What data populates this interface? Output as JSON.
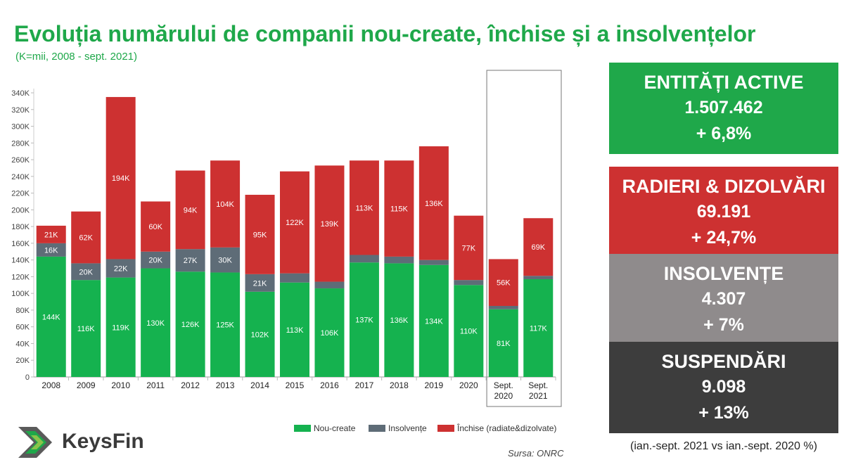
{
  "title": "Evoluția numărului de companii nou-create, închise și a insolvențelor",
  "subtitle": "(K=mii, 2008 - sept. 2021)",
  "colors": {
    "accent_green": "#1fa84a",
    "bar_green": "#15b24f",
    "bar_gray": "#5e6c77",
    "bar_red": "#cd3131",
    "stat_gray": "#8f8b8c",
    "stat_dark": "#3d3d3d",
    "stat_red": "#cd3131"
  },
  "stats": [
    {
      "label": "ENTITĂȚI ACTIVE",
      "value": "1.507.462",
      "change": "+ 6,8%",
      "color": "#1fa84a"
    },
    {
      "label": "RADIERI & DIZOLVĂRI",
      "value": "69.191",
      "change": "+ 24,7%",
      "color": "#cd3131"
    },
    {
      "label": "INSOLVENȚE",
      "value": "4.307",
      "change": "+ 7%",
      "color": "#8f8b8c"
    },
    {
      "label": "SUSPENDĂRI",
      "value": "9.098",
      "change": "+ 13%",
      "color": "#3d3d3d"
    }
  ],
  "note": "(ian.-sept. 2021 vs ian.-sept. 2020 %)",
  "source": "Sursa: ONRC",
  "logo": {
    "text": "KeysFin",
    "icon": "keysfin-chevron-logo"
  },
  "chart_data": {
    "type": "bar",
    "stacked": true,
    "categories": [
      "2008",
      "2009",
      "2010",
      "2011",
      "2012",
      "2013",
      "2014",
      "2015",
      "2016",
      "2017",
      "2018",
      "2019",
      "2020",
      "Sept. 2020",
      "Sept. 2021"
    ],
    "series": [
      {
        "name": "Nou-create",
        "color": "#15b24f",
        "values": [
          144,
          116,
          119,
          130,
          126,
          125,
          102,
          113,
          106,
          137,
          136,
          134,
          110,
          81,
          117
        ],
        "labels": [
          "144K",
          "116K",
          "119K",
          "130K",
          "126K",
          "125K",
          "102K",
          "113K",
          "106K",
          "137K",
          "136K",
          "134K",
          "110K",
          "81K",
          "117K"
        ]
      },
      {
        "name": "Insolvențe",
        "color": "#5e6c77",
        "values": [
          16,
          20,
          22,
          20,
          27,
          30,
          21,
          11,
          8,
          9,
          8,
          6,
          6,
          4,
          4
        ],
        "labels": [
          "16K",
          "20K",
          "22K",
          "20K",
          "27K",
          "30K",
          "21K",
          "",
          "",
          "",
          "",
          "",
          "",
          "",
          ""
        ]
      },
      {
        "name": "Închise (radiate&dizolvate)",
        "color": "#cd3131",
        "values": [
          21,
          62,
          194,
          60,
          94,
          104,
          95,
          122,
          139,
          113,
          115,
          136,
          77,
          56,
          69
        ],
        "labels": [
          "21K",
          "62K",
          "194K",
          "60K",
          "94K",
          "104K",
          "95K",
          "122K",
          "139K",
          "113K",
          "115K",
          "136K",
          "77K",
          "56K",
          "69K"
        ]
      }
    ],
    "ylim": [
      0,
      340
    ],
    "yticks": [
      "0",
      "20K",
      "40K",
      "60K",
      "80K",
      "100K",
      "120K",
      "140K",
      "160K",
      "180K",
      "200K",
      "220K",
      "240K",
      "260K",
      "280K",
      "300K",
      "320K",
      "340K"
    ],
    "grid": false,
    "legend": "bottom-right",
    "highlight": [
      "Sept. 2020",
      "Sept. 2021"
    ]
  }
}
